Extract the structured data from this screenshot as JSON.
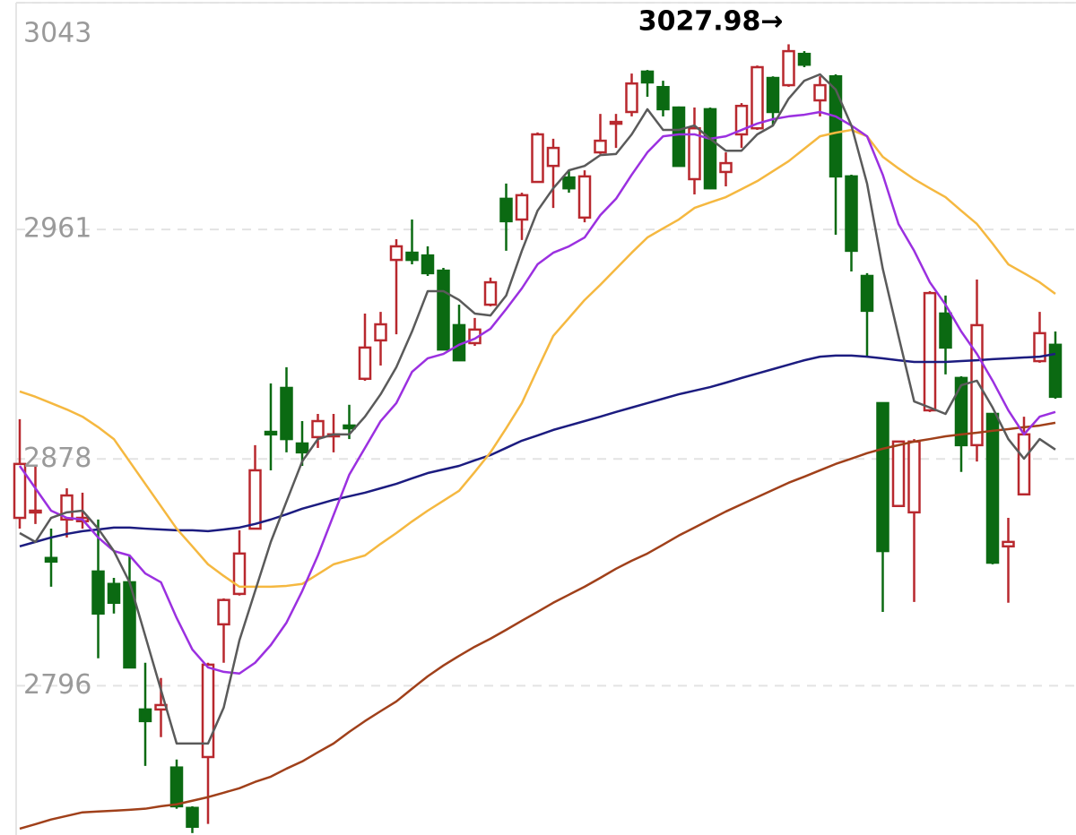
{
  "chart_data": {
    "type": "candlestick",
    "annotation": "3027.98→",
    "ylim": [
      2742,
      3044
    ],
    "yticks": [
      3043,
      2961,
      2878,
      2796
    ],
    "grid": true,
    "up_color": "#b8282e",
    "down_color": "#0b6a12",
    "categories": [
      null,
      null,
      null,
      null,
      null,
      null,
      null,
      null,
      null,
      null,
      null,
      null,
      null,
      null,
      null,
      null,
      null,
      null,
      null,
      null,
      null,
      null,
      null,
      null,
      null,
      null,
      null,
      null,
      null,
      null,
      null,
      null,
      null,
      null,
      null,
      null,
      null,
      null,
      null,
      null,
      null,
      null,
      null,
      null,
      null,
      null,
      null,
      null,
      null,
      null,
      null,
      null,
      null,
      null,
      null,
      null,
      null,
      null,
      null,
      null,
      null,
      null,
      null,
      null,
      null,
      null,
      null
    ],
    "open": [
      2856.7,
      2858.7,
      2842.2,
      2856.1,
      2855.5,
      2837.3,
      2832.8,
      2833.4,
      2787.4,
      2787.4,
      2766.4,
      2751.8,
      2770.2,
      2818.2,
      2829.2,
      2852.8,
      2887.8,
      2903.7,
      2883.6,
      2885.9,
      2886.2,
      2890.1,
      2907.0,
      2920.9,
      2950.0,
      2952.6,
      2951.6,
      2946.1,
      2926.4,
      2919.9,
      2933.8,
      2972.1,
      2964.6,
      2978.2,
      2984.0,
      2979.8,
      2965.3,
      2988.9,
      2999.3,
      3003.5,
      3018.1,
      3012.5,
      3005.1,
      2979.2,
      3004.5,
      2981.8,
      2995.4,
      2997.6,
      3015.8,
      3013.2,
      3024.5,
      3007.7,
      3016.4,
      2980.2,
      2944.2,
      2898.2,
      2861.0,
      2858.7,
      2895.6,
      2930.6,
      2907.3,
      2883.0,
      2894.3,
      2846.4,
      2865.2,
      2913.4,
      2919.3
    ],
    "high": [
      2892.4,
      2875.5,
      2852.8,
      2867.4,
      2865.8,
      2856.1,
      2835.0,
      2843.1,
      2804.3,
      2798.8,
      2769.3,
      2752.4,
      2804.3,
      2827.6,
      2852.2,
      2883.0,
      2905.3,
      2911.2,
      2891.7,
      2894.3,
      2894.3,
      2897.6,
      2930.6,
      2931.2,
      2957.5,
      2964.6,
      2954.9,
      2947.1,
      2933.8,
      2929.0,
      2943.6,
      2977.6,
      2974.3,
      2996.1,
      2993.8,
      2982.4,
      2982.4,
      3002.8,
      3002.8,
      3017.4,
      3018.7,
      3014.8,
      3005.5,
      3005.1,
      3005.1,
      2988.9,
      3006.7,
      3020.3,
      3016.4,
      3027.98,
      3025.5,
      3016.4,
      3017.1,
      2980.8,
      2945.2,
      2898.2,
      2884.3,
      2885.2,
      2938.7,
      2937.1,
      2907.9,
      2942.9,
      2894.3,
      2856.7,
      2893.3,
      2931.2,
      2924.1
    ],
    "low": [
      2852.8,
      2854.5,
      2831.8,
      2849.6,
      2852.8,
      2805.9,
      2822.1,
      2802.6,
      2767.0,
      2777.4,
      2751.5,
      2742.7,
      2746.0,
      2804.3,
      2828.6,
      2852.8,
      2873.9,
      2880.4,
      2875.5,
      2882.0,
      2880.4,
      2885.2,
      2906.3,
      2911.8,
      2923.1,
      2948.4,
      2944.2,
      2917.6,
      2913.4,
      2918.9,
      2933.2,
      2953.3,
      2957.2,
      2978.2,
      2968.8,
      2974.3,
      2963.6,
      2988.3,
      2990.5,
      3001.9,
      3009.0,
      3001.9,
      2984.0,
      2973.7,
      2975.6,
      2976.6,
      2990.5,
      2997.0,
      2998.6,
      3012.6,
      3019.7,
      3001.9,
      2959.1,
      2945.8,
      2915.0,
      2822.7,
      2861.0,
      2826.3,
      2895.0,
      2908.6,
      2873.3,
      2877.1,
      2839.9,
      2826.0,
      2865.2,
      2912.8,
      2899.8
    ],
    "close": [
      2876.2,
      2859.3,
      2840.9,
      2864.8,
      2856.7,
      2822.1,
      2826.0,
      2802.6,
      2783.2,
      2789.0,
      2752.4,
      2745.0,
      2803.6,
      2827.0,
      2843.8,
      2873.9,
      2886.9,
      2885.2,
      2880.4,
      2891.7,
      2886.9,
      2889.1,
      2918.3,
      2926.7,
      2954.9,
      2950.0,
      2945.2,
      2917.6,
      2913.7,
      2924.8,
      2941.9,
      2964.0,
      2973.4,
      2995.4,
      2990.5,
      2975.9,
      2980.2,
      2993.1,
      2999.9,
      3013.8,
      3014.2,
      3004.5,
      2984.0,
      2997.6,
      2975.9,
      2985.0,
      3005.7,
      3019.7,
      3003.5,
      3025.5,
      3020.6,
      3013.2,
      2980.2,
      2953.3,
      2931.6,
      2844.7,
      2884.3,
      2884.3,
      2938.0,
      2918.3,
      2883.0,
      2926.4,
      2840.5,
      2848.0,
      2886.9,
      2923.5,
      2900.5
    ],
    "series": [
      {
        "color": "#a0401a",
        "values": [
          2744.3,
          2745.9,
          2747.6,
          2748.9,
          2750.2,
          2750.5,
          2750.8,
          2751.1,
          2751.5,
          2752.4,
          2753.1,
          2754.4,
          2755.7,
          2757.3,
          2758.9,
          2761.2,
          2763.1,
          2766.0,
          2768.6,
          2771.9,
          2775.1,
          2779.3,
          2783.2,
          2786.8,
          2790.3,
          2794.9,
          2799.4,
          2803.3,
          2806.8,
          2810.1,
          2813.0,
          2816.2,
          2819.5,
          2822.7,
          2826.0,
          2828.9,
          2831.8,
          2835.0,
          2838.3,
          2841.2,
          2843.8,
          2847.0,
          2850.3,
          2853.2,
          2856.1,
          2859.0,
          2861.6,
          2864.2,
          2866.8,
          2869.4,
          2871.6,
          2873.9,
          2876.2,
          2878.1,
          2880.1,
          2881.7,
          2883.0,
          2884.3,
          2885.2,
          2886.2,
          2886.9,
          2887.5,
          2888.2,
          2888.8,
          2889.5,
          2890.1,
          2891.1
        ]
      },
      {
        "color": "#1c1c80",
        "values": [
          2846.4,
          2848.0,
          2849.6,
          2850.9,
          2851.9,
          2852.5,
          2853.2,
          2853.2,
          2852.8,
          2852.5,
          2852.2,
          2852.2,
          2851.9,
          2852.5,
          2853.2,
          2854.5,
          2856.1,
          2858.0,
          2860.0,
          2861.6,
          2863.2,
          2864.5,
          2865.8,
          2867.4,
          2869.0,
          2871.0,
          2872.9,
          2874.2,
          2875.5,
          2877.5,
          2879.4,
          2882.0,
          2884.6,
          2886.5,
          2888.5,
          2890.1,
          2891.7,
          2893.3,
          2895.0,
          2896.6,
          2898.2,
          2899.8,
          2901.4,
          2902.7,
          2904.0,
          2905.6,
          2907.3,
          2908.9,
          2910.5,
          2912.1,
          2913.7,
          2915.0,
          2915.4,
          2915.4,
          2915.0,
          2914.4,
          2913.7,
          2913.1,
          2913.1,
          2913.1,
          2913.4,
          2913.7,
          2914.1,
          2914.4,
          2914.7,
          2915.0,
          2916.0
        ]
      },
      {
        "color": "#f5b840",
        "values": [
          2902.4,
          2900.5,
          2898.2,
          2895.9,
          2893.3,
          2889.5,
          2885.2,
          2877.1,
          2869.0,
          2860.9,
          2852.8,
          2846.4,
          2839.9,
          2835.7,
          2831.8,
          2831.8,
          2831.8,
          2832.1,
          2832.8,
          2836.3,
          2839.9,
          2841.5,
          2843.1,
          2847.3,
          2851.2,
          2855.4,
          2859.3,
          2862.9,
          2866.5,
          2873.3,
          2880.4,
          2889.1,
          2898.2,
          2910.5,
          2922.5,
          2929.0,
          2935.5,
          2941.0,
          2946.8,
          2952.6,
          2958.1,
          2961.4,
          2964.6,
          2968.8,
          2970.8,
          2972.7,
          2975.6,
          2978.5,
          2982.1,
          2985.7,
          2990.2,
          2994.7,
          2996.0,
          2997.0,
          2994.7,
          2987.3,
          2983.1,
          2979.2,
          2975.9,
          2972.7,
          2967.8,
          2963.0,
          2955.9,
          2948.4,
          2945.2,
          2941.9,
          2937.7
        ]
      },
      {
        "color": "#9b30e0",
        "values": [
          2875.5,
          2867.4,
          2859.3,
          2856.7,
          2856.1,
          2849.6,
          2844.7,
          2843.1,
          2836.6,
          2833.4,
          2820.5,
          2809.1,
          2802.6,
          2801.0,
          2800.4,
          2804.3,
          2810.7,
          2818.8,
          2830.2,
          2843.1,
          2857.7,
          2872.3,
          2882.0,
          2891.7,
          2898.2,
          2909.5,
          2914.4,
          2916.0,
          2919.3,
          2921.5,
          2925.1,
          2932.2,
          2939.7,
          2948.4,
          2952.6,
          2954.9,
          2958.1,
          2966.2,
          2972.1,
          2980.8,
          2988.9,
          2994.7,
          2995.4,
          2995.4,
          2993.8,
          2994.7,
          2997.0,
          2999.3,
          3000.9,
          3001.9,
          3002.5,
          3003.5,
          3001.9,
          2998.6,
          2994.7,
          2980.8,
          2963.0,
          2953.3,
          2941.9,
          2933.8,
          2924.1,
          2916.0,
          2906.3,
          2895.6,
          2886.9,
          2893.3,
          2895.0
        ]
      },
      {
        "color": "#5a5a5a",
        "values": [
          2851.2,
          2848.0,
          2856.7,
          2858.7,
          2859.3,
          2852.8,
          2844.7,
          2833.4,
          2814.0,
          2794.5,
          2775.1,
          2775.1,
          2775.1,
          2788.1,
          2812.4,
          2830.2,
          2848.0,
          2862.6,
          2877.1,
          2885.2,
          2886.9,
          2886.9,
          2893.3,
          2901.4,
          2911.2,
          2924.1,
          2938.7,
          2938.7,
          2935.5,
          2930.6,
          2929.9,
          2937.1,
          2953.3,
          2967.8,
          2975.9,
          2982.4,
          2984.0,
          2987.9,
          2988.3,
          2995.4,
          3004.5,
          2997.0,
          2997.0,
          2998.6,
          2993.8,
          2989.5,
          2989.5,
          2995.4,
          2998.6,
          3008.3,
          3014.8,
          3017.1,
          3011.6,
          2998.6,
          2977.6,
          2946.8,
          2922.5,
          2898.8,
          2896.6,
          2894.3,
          2904.7,
          2906.3,
          2896.6,
          2885.2,
          2878.1,
          2885.2,
          2881.4
        ]
      }
    ]
  }
}
